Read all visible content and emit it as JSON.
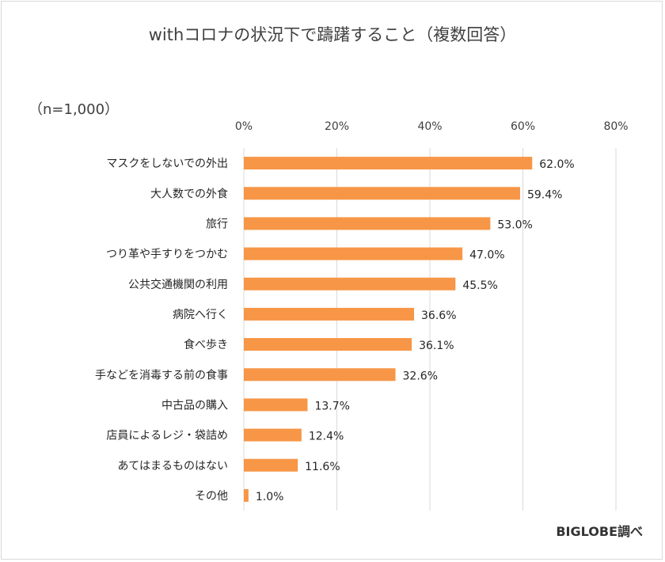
{
  "chart_data": {
    "type": "bar",
    "orientation": "horizontal",
    "title": "withコロナの状況下で躊躇すること（複数回答）",
    "sample_size_label": "（n=1,000）",
    "categories": [
      "マスクをしないでの外出",
      "大人数での外食",
      "旅行",
      "つり革や手すりをつかむ",
      "公共交通機関の利用",
      "病院へ行く",
      "食べ歩き",
      "手などを消毒する前の食事",
      "中古品の購入",
      "店員によるレジ・袋詰め",
      "あてはまるものはない",
      "その他"
    ],
    "values": [
      62.0,
      59.4,
      53.0,
      47.0,
      45.5,
      36.6,
      36.1,
      32.6,
      13.7,
      12.4,
      11.6,
      1.0
    ],
    "value_labels": [
      "62.0%",
      "59.4%",
      "53.0%",
      "47.0%",
      "45.5%",
      "36.6%",
      "36.1%",
      "32.6%",
      "13.7%",
      "12.4%",
      "11.6%",
      "1.0%"
    ],
    "xlim": [
      0,
      80
    ],
    "x_ticks": [
      0,
      20,
      40,
      60,
      80
    ],
    "x_tick_labels": [
      "0%",
      "20%",
      "40%",
      "60%",
      "80%"
    ],
    "x_axis_position": "top",
    "grid": true,
    "bar_color": "#F79646",
    "source": "BIGLOBE調べ"
  }
}
